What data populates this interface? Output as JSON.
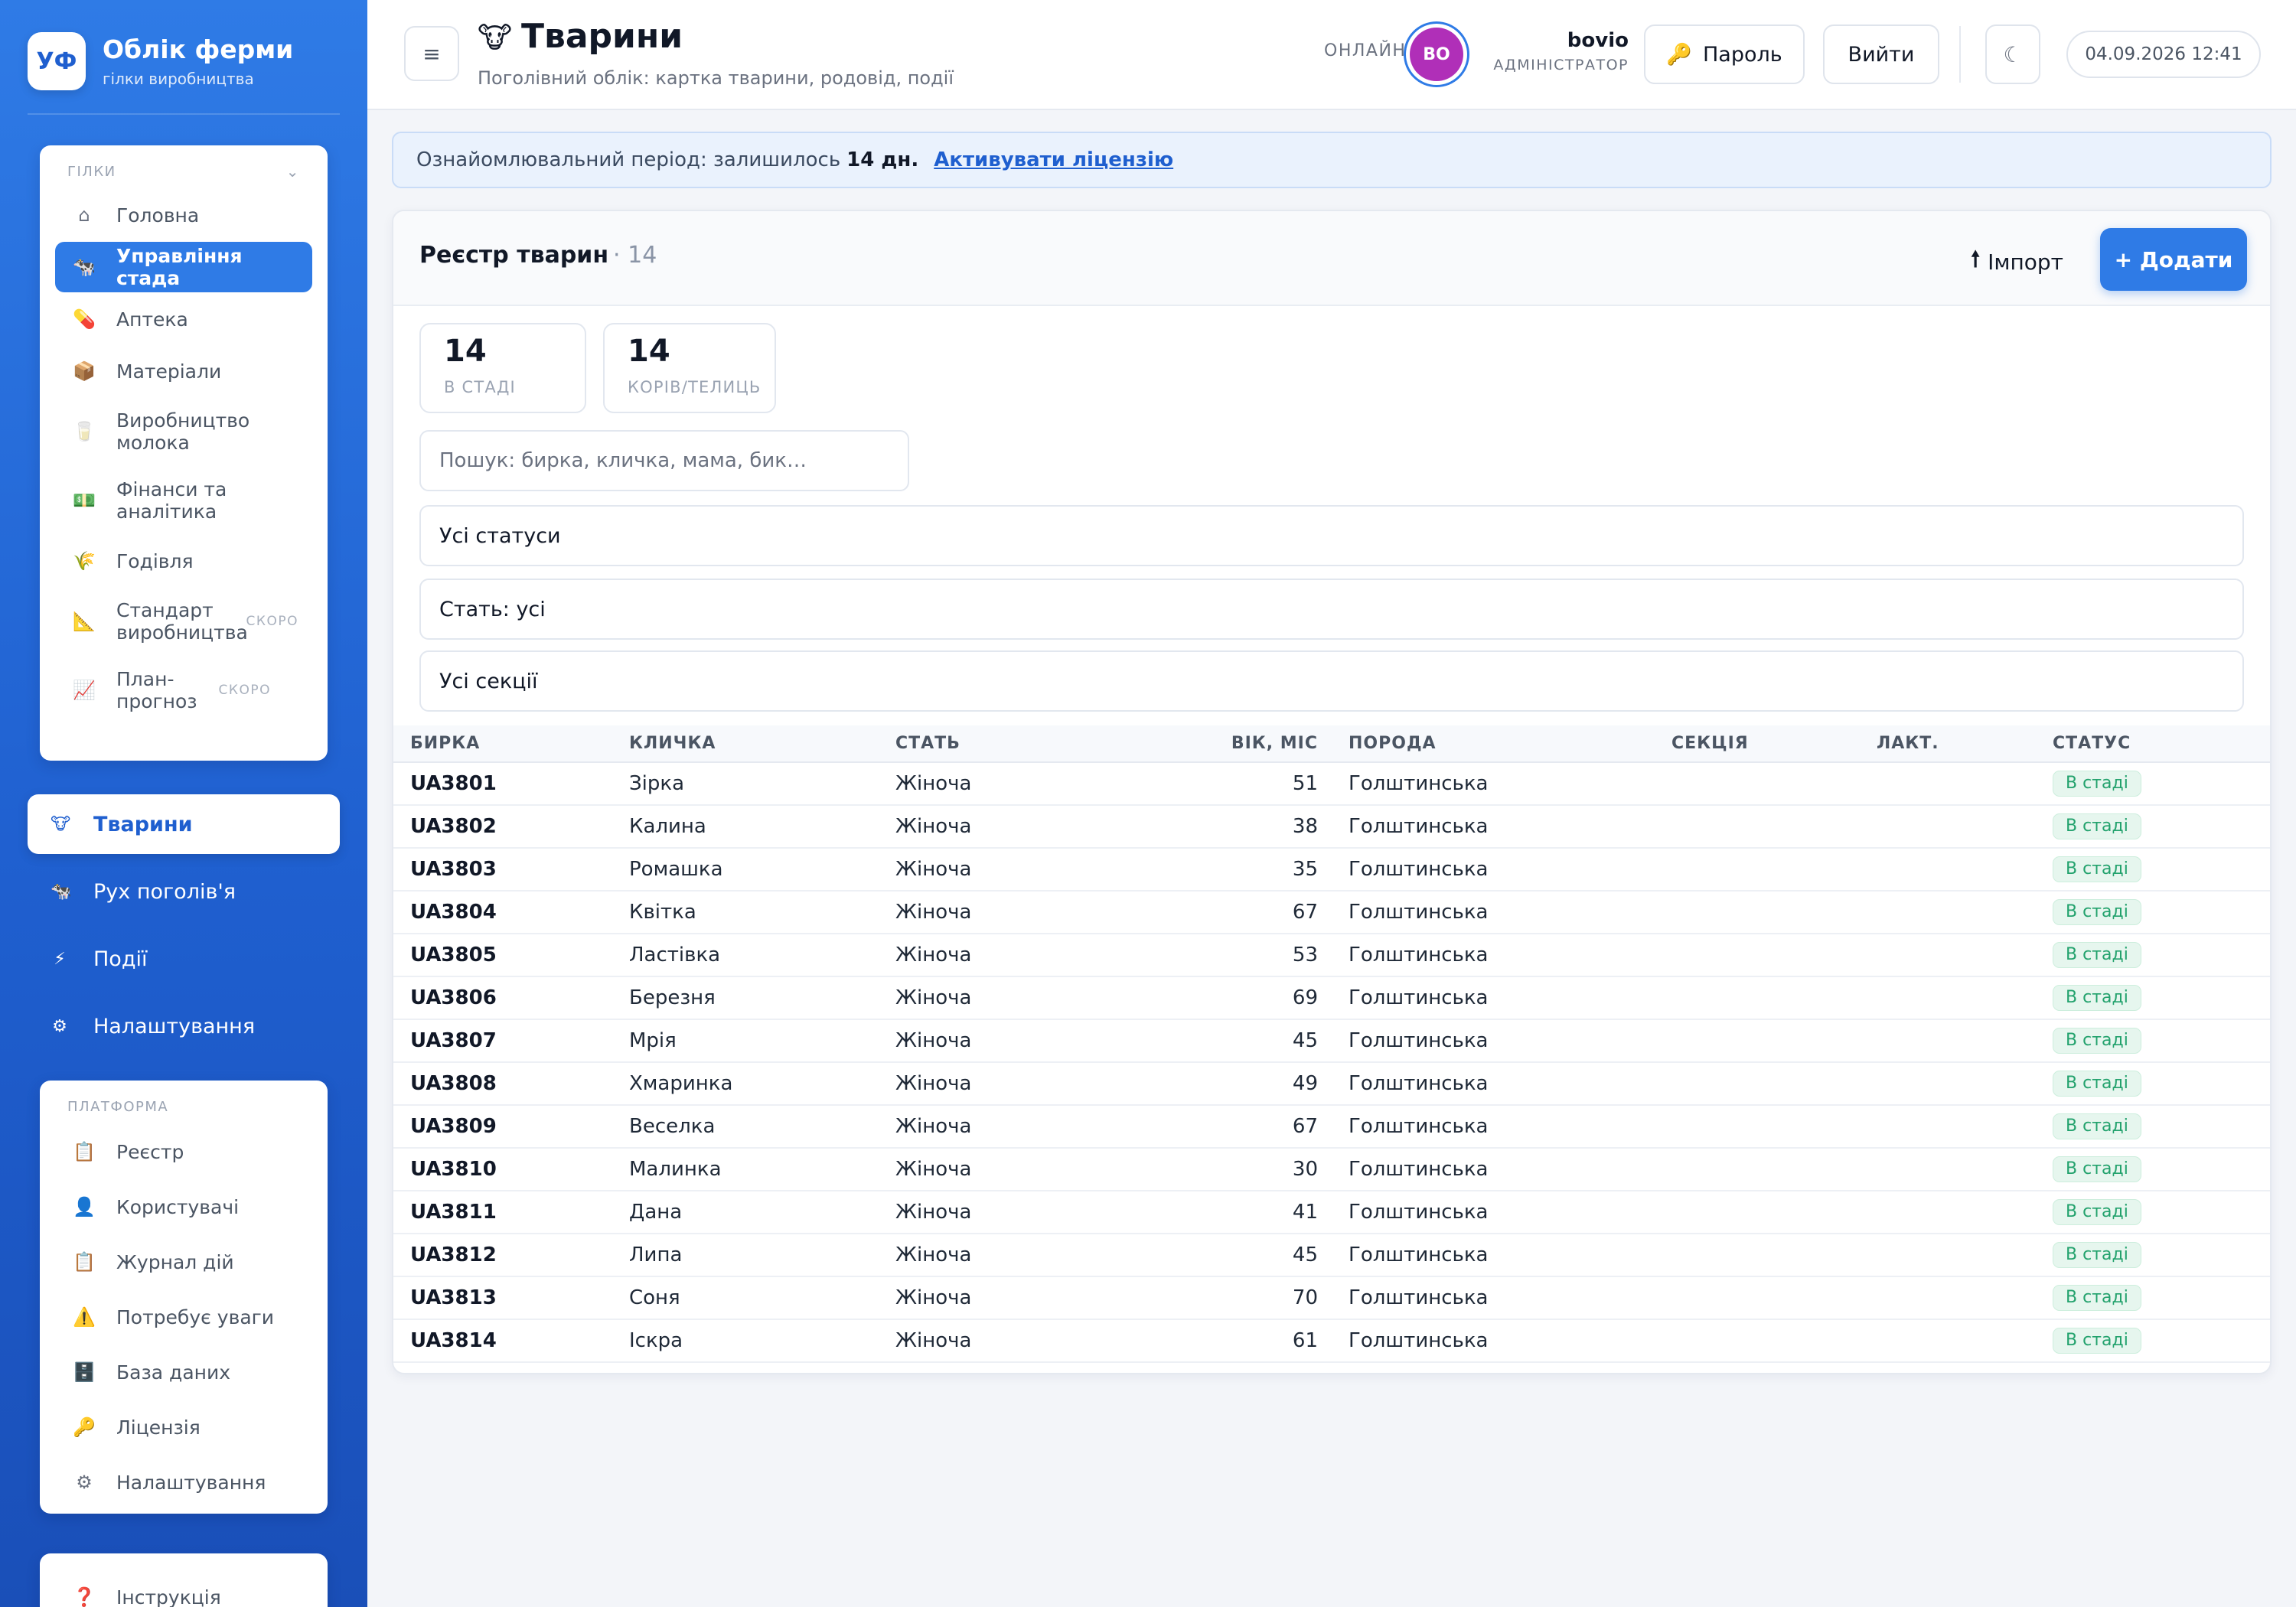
{
  "brand": {
    "logo": "УФ",
    "title": "Облік ферми",
    "subtitle": "гілки виробництва"
  },
  "sidebar": {
    "group_label": "ГІЛКИ",
    "group_chevron": "⌄",
    "items": [
      {
        "icon": "⌂",
        "label": "Головна"
      },
      {
        "icon": "🐄",
        "label": "Управління стада"
      },
      {
        "icon": "💊",
        "label": "Аптека"
      },
      {
        "icon": "📦",
        "label": "Матеріали"
      },
      {
        "icon": "🥛",
        "label": "Виробництво молока"
      },
      {
        "icon": "💵",
        "label": "Фінанси та аналітика"
      },
      {
        "icon": "🌾",
        "label": "Годівля"
      },
      {
        "icon": "📐",
        "label": "Стандарт виробництва",
        "badge": "СКОРО"
      },
      {
        "icon": "📈",
        "label": "План-прогноз",
        "badge": "СКОРО"
      }
    ],
    "sub_items": [
      {
        "icon": "🐮",
        "label": "Тварини"
      },
      {
        "icon": "🐄",
        "label": "Рух поголів'я"
      },
      {
        "icon": "⚡",
        "label": "Події"
      },
      {
        "icon": "⚙",
        "label": "Налаштування"
      }
    ],
    "platform_label": "ПЛАТФОРМА",
    "platform_items": [
      {
        "icon": "📋",
        "label": "Реєстр"
      },
      {
        "icon": "👤",
        "label": "Користувачі"
      },
      {
        "icon": "📋",
        "label": "Журнал дій"
      },
      {
        "icon": "⚠️",
        "label": "Потребує уваги"
      },
      {
        "icon": "🗄️",
        "label": "База даних"
      },
      {
        "icon": "🔑",
        "label": "Ліцензія"
      },
      {
        "icon": "⚙",
        "label": "Налаштування"
      }
    ],
    "help": {
      "icon": "❓",
      "label": "Інструкція"
    }
  },
  "header": {
    "menu_icon": "≡",
    "title_icon": "🐮",
    "title": "Тварини",
    "subtitle": "Поголівний облік: картка тварини, родовід, події",
    "online_label": "ОНЛАЙН",
    "avatar_initials": "BO",
    "user_name": "bovio",
    "user_role": "АДМІНІСТРАТОР",
    "password_icon": "🔑",
    "password_label": "Пароль",
    "logout_label": "Вийти",
    "theme_icon": "☾",
    "datetime": "04.09.2026 12:41"
  },
  "banner": {
    "text": "Ознайомлювальний період: залишилось",
    "days": "14 дн.",
    "link": "Активувати ліцензію"
  },
  "registry": {
    "title": "Реєстр тварин",
    "count": "· 14",
    "import_icon": "🠕",
    "import_label": "Імпорт",
    "add_label": "+ Додати",
    "stats": [
      {
        "value": "14",
        "caption": "В СТАДІ"
      },
      {
        "value": "14",
        "caption": "КОРІВ/ТЕЛИЦЬ"
      }
    ],
    "search_placeholder": "Пошук: бирка, кличка, мама, бик…",
    "filters": [
      "Усі статуси",
      "Стать: усі",
      "Усі секції"
    ],
    "columns": [
      "БИРКА",
      "КЛИЧКА",
      "СТАТЬ",
      "ВІК, МІС",
      "ПОРОДА",
      "СЕКЦІЯ",
      "ЛАКТ.",
      "СТАТУС"
    ],
    "rows": [
      {
        "tag": "UA3801",
        "name": "Зірка",
        "sex": "Жіноча",
        "age": "51",
        "breed": "Голштинська",
        "section": "",
        "lact": "",
        "status": "В стаді"
      },
      {
        "tag": "UA3802",
        "name": "Калина",
        "sex": "Жіноча",
        "age": "38",
        "breed": "Голштинська",
        "section": "",
        "lact": "",
        "status": "В стаді"
      },
      {
        "tag": "UA3803",
        "name": "Ромашка",
        "sex": "Жіноча",
        "age": "35",
        "breed": "Голштинська",
        "section": "",
        "lact": "",
        "status": "В стаді"
      },
      {
        "tag": "UA3804",
        "name": "Квітка",
        "sex": "Жіноча",
        "age": "67",
        "breed": "Голштинська",
        "section": "",
        "lact": "",
        "status": "В стаді"
      },
      {
        "tag": "UA3805",
        "name": "Ластівка",
        "sex": "Жіноча",
        "age": "53",
        "breed": "Голштинська",
        "section": "",
        "lact": "",
        "status": "В стаді"
      },
      {
        "tag": "UA3806",
        "name": "Березня",
        "sex": "Жіноча",
        "age": "69",
        "breed": "Голштинська",
        "section": "",
        "lact": "",
        "status": "В стаді"
      },
      {
        "tag": "UA3807",
        "name": "Мрія",
        "sex": "Жіноча",
        "age": "45",
        "breed": "Голштинська",
        "section": "",
        "lact": "",
        "status": "В стаді"
      },
      {
        "tag": "UA3808",
        "name": "Хмаринка",
        "sex": "Жіноча",
        "age": "49",
        "breed": "Голштинська",
        "section": "",
        "lact": "",
        "status": "В стаді"
      },
      {
        "tag": "UA3809",
        "name": "Веселка",
        "sex": "Жіноча",
        "age": "67",
        "breed": "Голштинська",
        "section": "",
        "lact": "",
        "status": "В стаді"
      },
      {
        "tag": "UA3810",
        "name": "Малинка",
        "sex": "Жіноча",
        "age": "30",
        "breed": "Голштинська",
        "section": "",
        "lact": "",
        "status": "В стаді"
      },
      {
        "tag": "UA3811",
        "name": "Дана",
        "sex": "Жіноча",
        "age": "41",
        "breed": "Голштинська",
        "section": "",
        "lact": "",
        "status": "В стаді"
      },
      {
        "tag": "UA3812",
        "name": "Липа",
        "sex": "Жіноча",
        "age": "45",
        "breed": "Голштинська",
        "section": "",
        "lact": "",
        "status": "В стаді"
      },
      {
        "tag": "UA3813",
        "name": "Соня",
        "sex": "Жіноча",
        "age": "70",
        "breed": "Голштинська",
        "section": "",
        "lact": "",
        "status": "В стаді"
      },
      {
        "tag": "UA3814",
        "name": "Іскра",
        "sex": "Жіноча",
        "age": "61",
        "breed": "Голштинська",
        "section": "",
        "lact": "",
        "status": "В стаді"
      }
    ]
  },
  "colors": {
    "accent": "#2f7be6",
    "status_ok": "#23a26d",
    "avatar": "#b02fb8"
  }
}
